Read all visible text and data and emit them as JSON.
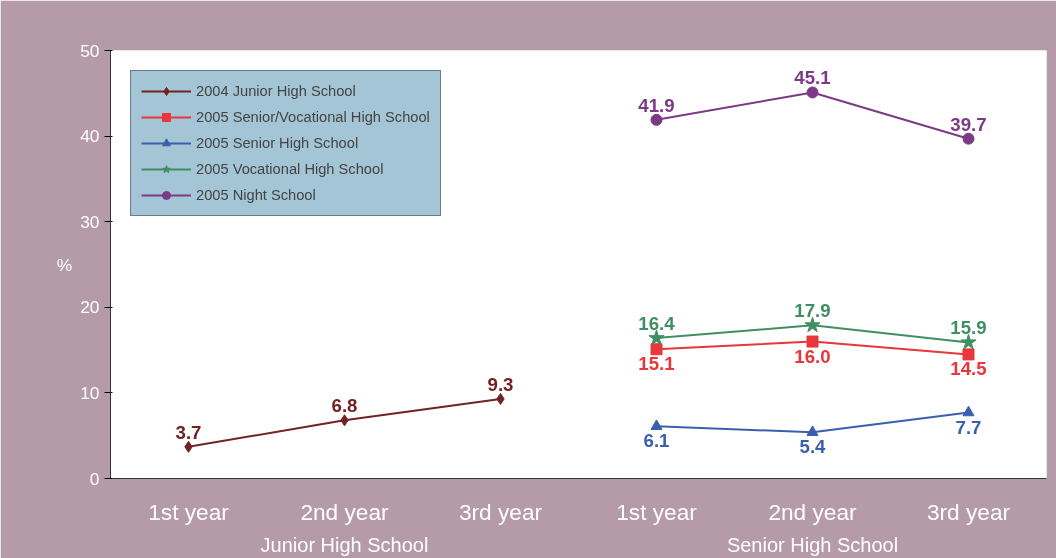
{
  "chart_data": {
    "type": "line",
    "ylabel": "%",
    "categories": [
      "1st year",
      "2nd year",
      "3rd year",
      "1st year",
      "2nd year",
      "3rd year"
    ],
    "annotations": [
      "Junior High School",
      "Senior High School"
    ],
    "ylim": [
      0,
      50
    ],
    "yticks": [
      0,
      10,
      20,
      30,
      40,
      50
    ],
    "grid": false,
    "legend": "top left",
    "data_labels": true,
    "line_style": "solid",
    "series": [
      {
        "name": "2004 Junior High School",
        "color": "#722222",
        "marker": "diamond",
        "values": [
          3.7,
          6.8,
          9.3,
          null,
          null,
          null
        ]
      },
      {
        "name": "2005 Senior/Vocational High School",
        "color": "#e8363a",
        "marker": "square",
        "values": [
          null,
          null,
          null,
          15.1,
          16.0,
          14.5
        ],
        "value_labels": [
          null,
          null,
          null,
          "15.1",
          "16.0",
          "14.5"
        ]
      },
      {
        "name": "2005 Senior High School",
        "color": "#3a5fb0",
        "marker": "triangle",
        "values": [
          null,
          null,
          null,
          6.1,
          5.4,
          7.7
        ]
      },
      {
        "name": "2005 Vocational High School",
        "color": "#3f8f62",
        "marker": "star",
        "values": [
          null,
          null,
          null,
          16.4,
          17.9,
          15.9
        ]
      },
      {
        "name": "2005 Night School",
        "color": "#7c3a86",
        "marker": "circle",
        "values": [
          null,
          null,
          null,
          41.9,
          45.1,
          39.7
        ]
      }
    ]
  }
}
